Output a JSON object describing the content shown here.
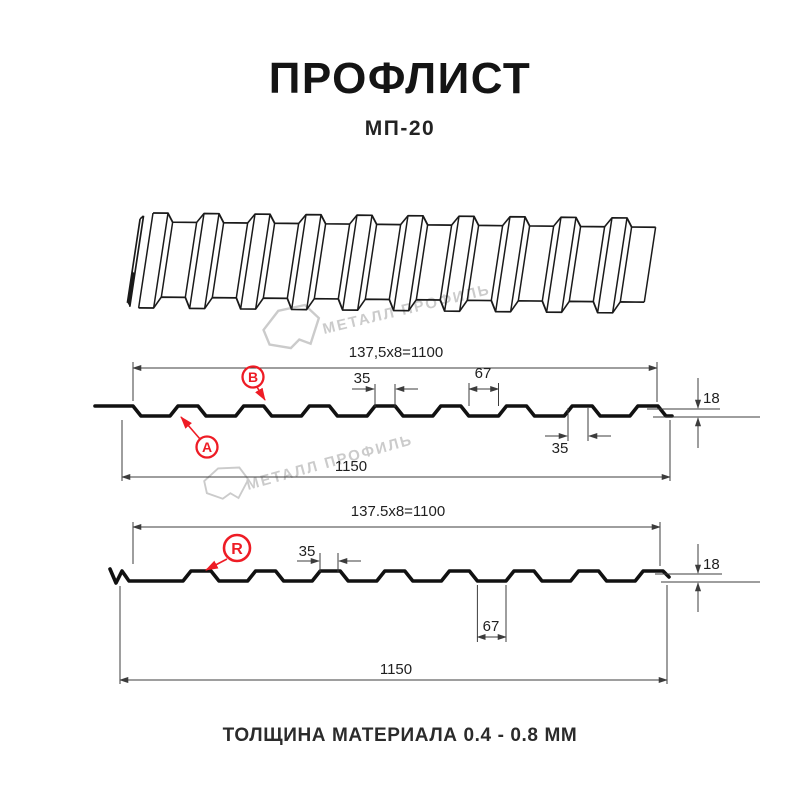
{
  "title": "ПРОФЛИСТ",
  "subtitle": "МП-20",
  "footer": "ТОЛЩИНА МАТЕРИАЛА 0.4 - 0.8 ММ",
  "watermark": {
    "brand": "МЕТАЛЛ ПРОФИЛЬ"
  },
  "colors": {
    "accent_red": "#ee1c25",
    "dimension_line": "#3c3c3c",
    "drawing_ink": "#111111",
    "watermark_gray": "#cbcbcb"
  },
  "diagram_top": {
    "pitch_formula": "137,5x8=1100",
    "rib_top_width": "35",
    "crest_gap": "67",
    "profile_height": "18",
    "rib_bottom_width": "35",
    "overall_width": "1150",
    "label_a": "A",
    "label_b": "B"
  },
  "diagram_bottom": {
    "pitch_formula": "137.5x8=1100",
    "rib_top_width": "35",
    "profile_height": "18",
    "valley_width": "67",
    "overall_width": "1150",
    "label_r": "R"
  }
}
